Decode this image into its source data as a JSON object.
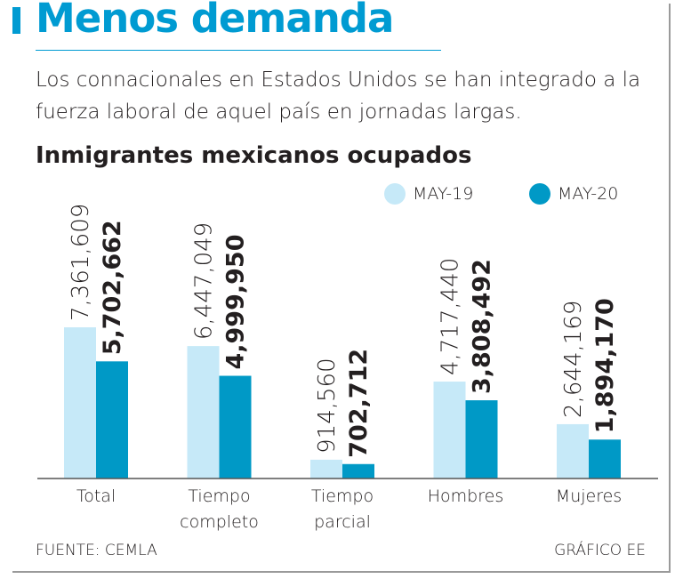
{
  "header": {
    "title": "Menos demanda",
    "subtitle": "Los connacionales en Estados Unidos se han integrado a la fuerza laboral de aquel país en jornadas largas."
  },
  "chart_data": {
    "type": "bar",
    "title": "Inmigrantes mexicanos ocupados",
    "xlabel": "",
    "ylabel": "",
    "ylim": [
      0,
      8500000
    ],
    "grid": false,
    "legend_position": "top-right",
    "categories": [
      [
        "Total"
      ],
      [
        "Tiempo",
        "completo"
      ],
      [
        "Tiempo",
        "parcial"
      ],
      [
        "Hombres"
      ],
      [
        "Mujeres"
      ]
    ],
    "series": [
      {
        "name": "MAY-19",
        "color": "#c6e9f8",
        "values": [
          7361609,
          6447049,
          914560,
          4717440,
          2644169
        ],
        "labels": [
          "7,361,609",
          "6,447,049",
          "914,560",
          "4,717,440",
          "2,644,169"
        ]
      },
      {
        "name": "MAY-20",
        "color": "#0099c6",
        "values": [
          5702662,
          4999950,
          702712,
          3808492,
          1894170
        ],
        "labels": [
          "5,702,662",
          "4,999,950",
          "702,712",
          "3,808,492",
          "1,894,170"
        ]
      }
    ]
  },
  "footer": {
    "source": "FUENTE: CEMLA",
    "credit": "GRÁFICO EE"
  },
  "colors": {
    "accent": "#009bd2",
    "text": "#231f20"
  }
}
